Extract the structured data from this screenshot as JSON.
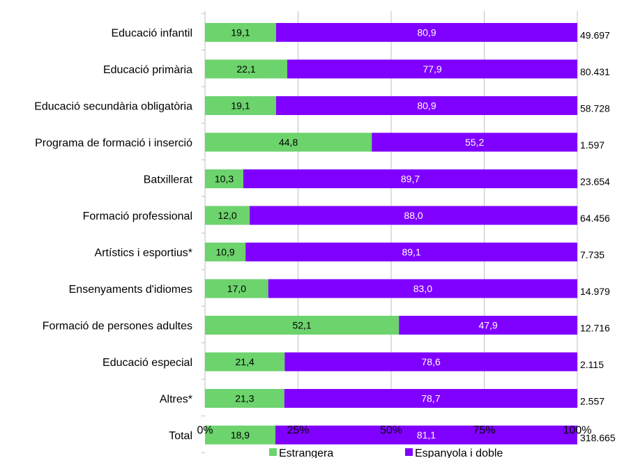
{
  "chart_data": {
    "type": "bar",
    "orientation": "horizontal",
    "stacked": "percent",
    "categories": [
      "Educació infantil",
      "Educació primària",
      "Educació secundària obligatòria",
      "Programa de formació i inserció",
      "Batxillerat",
      "Formació professional",
      "Artístics i esportius*",
      "Ensenyaments d'idiomes",
      "Formació de persones adultes",
      "Educació especial",
      "Altres*",
      "Total"
    ],
    "series": [
      {
        "name": "Estrangera",
        "color": "#6dd36d",
        "values": [
          19.1,
          22.1,
          19.1,
          44.8,
          10.3,
          12.0,
          10.9,
          17.0,
          52.1,
          21.4,
          21.3,
          18.9
        ],
        "labels": [
          "19,1",
          "22,1",
          "19,1",
          "44,8",
          "10,3",
          "12,0",
          "10,9",
          "17,0",
          "52,1",
          "21,4",
          "21,3",
          "18,9"
        ],
        "label_color": "#000000"
      },
      {
        "name": "Espanyola i doble",
        "color": "#8000ff",
        "values": [
          80.9,
          77.9,
          80.9,
          55.2,
          89.7,
          88.0,
          89.1,
          83.0,
          47.9,
          78.6,
          78.7,
          81.1
        ],
        "labels": [
          "80,9",
          "77,9",
          "80,9",
          "55,2",
          "89,7",
          "88,0",
          "89,1",
          "83,0",
          "47,9",
          "78,6",
          "78,7",
          "81,1"
        ],
        "label_color": "#ffffff"
      }
    ],
    "totals": [
      "49.697",
      "80.431",
      "58.728",
      "1.597",
      "23.654",
      "64.456",
      "7.735",
      "14.979",
      "12.716",
      "2.115",
      "2.557",
      "318.665"
    ],
    "x_ticks": [
      "0%",
      "25%",
      "50%",
      "75%",
      "100%"
    ],
    "xlim": [
      0,
      100
    ],
    "grid": true,
    "legend_position": "bottom"
  }
}
